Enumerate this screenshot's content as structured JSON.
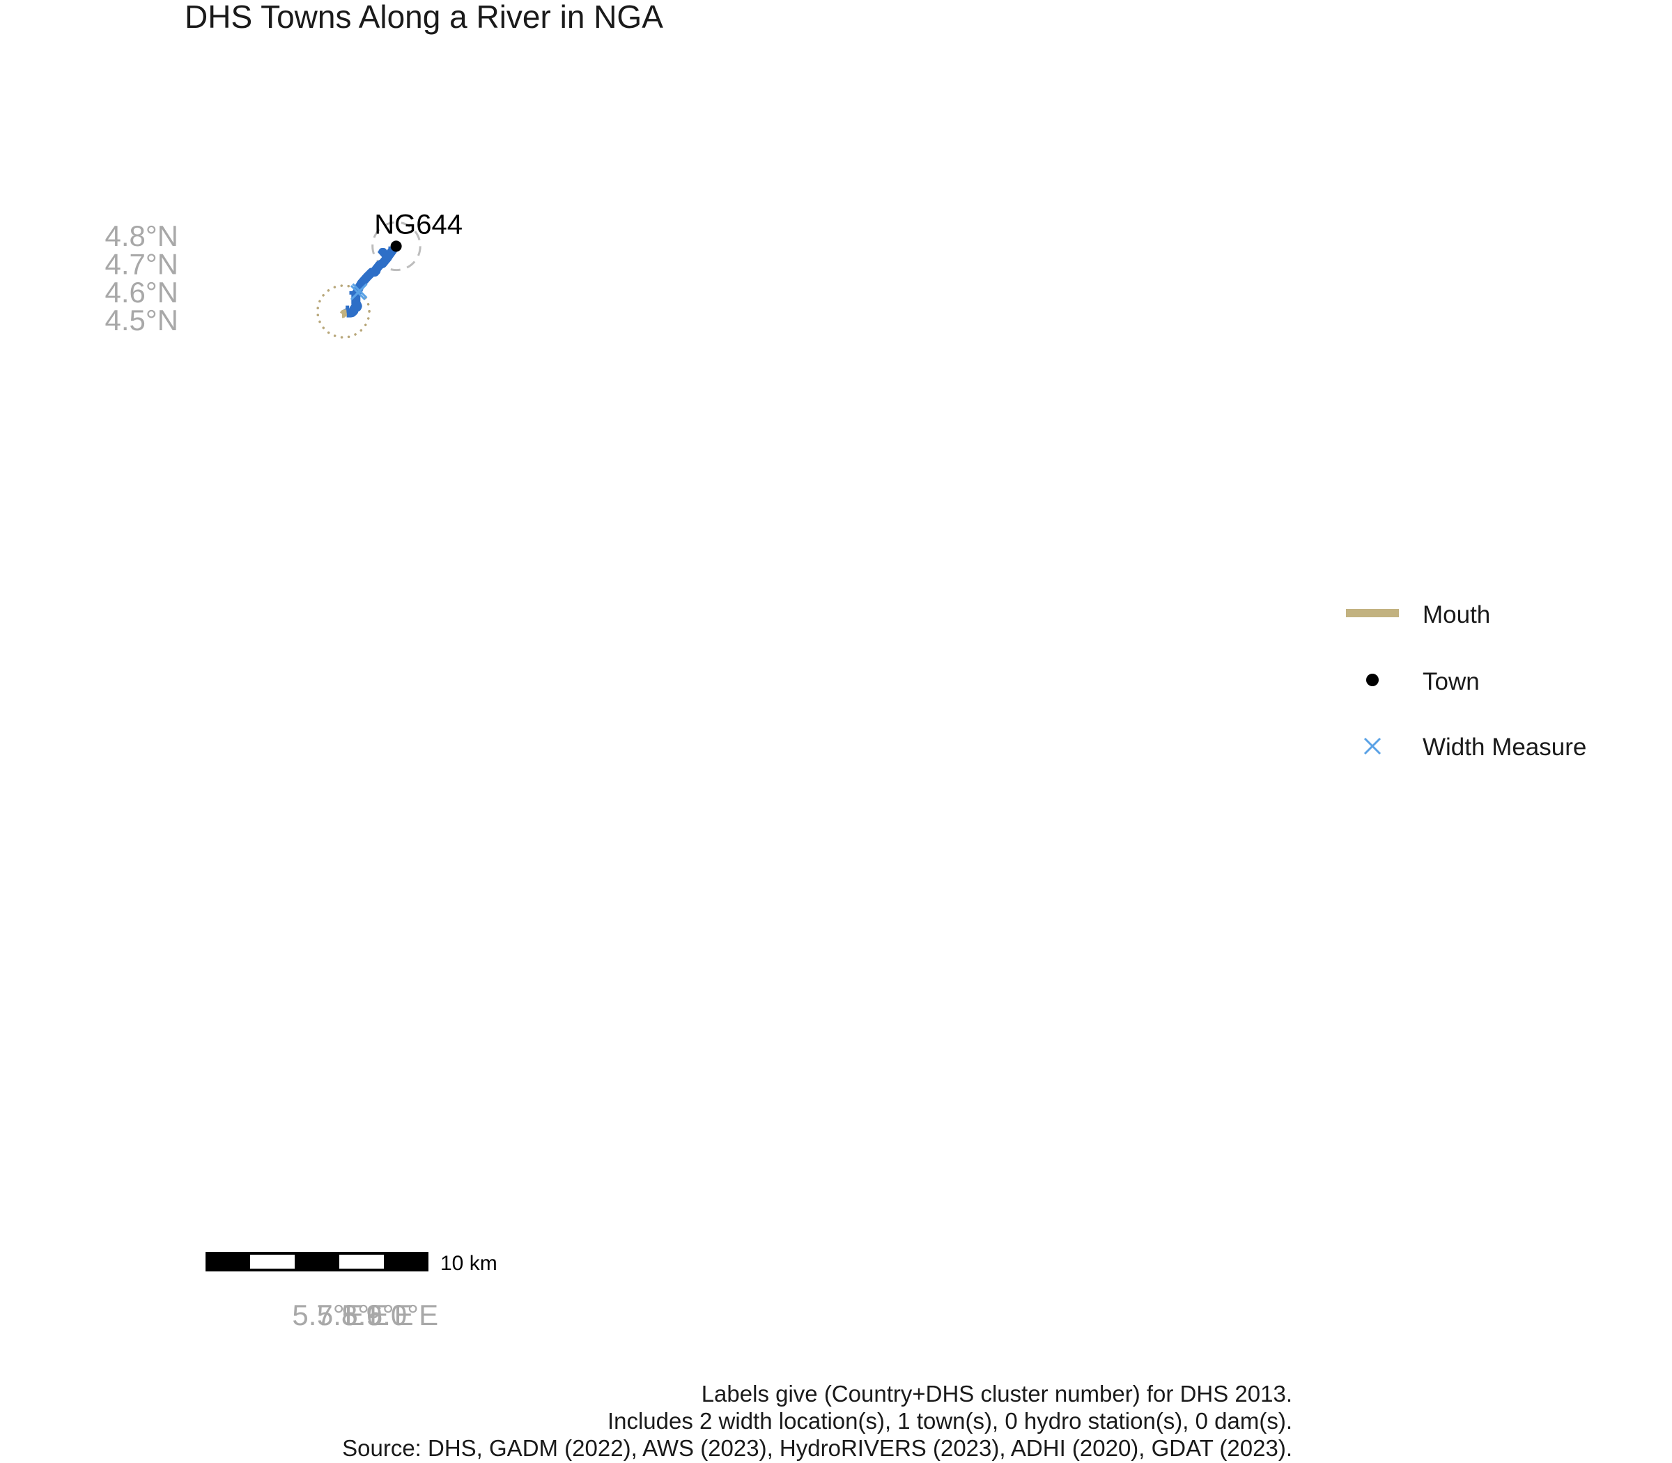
{
  "title": "DHS Towns Along a River in NGA",
  "map": {
    "lon_range": [
      5.63,
      6.18
    ],
    "lat_range": [
      4.43,
      4.86
    ],
    "x_ticks": [
      {
        "value": 5.7,
        "label": "5.7°E"
      },
      {
        "value": 5.8,
        "label": "5.8°E"
      },
      {
        "value": 5.9,
        "label": "5.9°E"
      },
      {
        "value": 6.0,
        "label": "6.0°E"
      }
    ],
    "y_ticks": [
      {
        "value": 4.5,
        "label": "4.5°N"
      },
      {
        "value": 4.6,
        "label": "4.6°N"
      },
      {
        "value": 4.7,
        "label": "4.7°N"
      },
      {
        "value": 4.8,
        "label": "4.8°N"
      }
    ],
    "colors": {
      "river": "#2e6fc7",
      "mouth": "#c2b280",
      "town": "#000000",
      "width_measure": "#5aa2e6",
      "buffer_town": "#bdbdbd",
      "buffer_mouth": "#b8a77a"
    },
    "towns": [
      {
        "label": "NG644",
        "lon": 5.975,
        "lat": 4.762
      }
    ],
    "width_measures": [
      {
        "lon": 5.821,
        "lat": 4.597
      },
      {
        "lon": 5.828,
        "lat": 4.603
      }
    ],
    "buffers": [
      {
        "kind": "town",
        "center_lon": 5.976,
        "center_lat": 4.762,
        "radius_deg": 0.0965,
        "style": "dashed"
      },
      {
        "kind": "mouth",
        "center_lon": 5.762,
        "center_lat": 4.53,
        "radius_deg": 0.1045,
        "style": "dotted"
      }
    ],
    "river_main": [
      [
        5.962,
        4.761
      ],
      [
        5.962,
        4.749
      ],
      [
        5.944,
        4.727
      ],
      [
        5.94,
        4.721
      ],
      [
        5.934,
        4.715
      ],
      [
        5.92,
        4.7
      ],
      [
        5.916,
        4.699
      ],
      [
        5.908,
        4.695
      ],
      [
        5.898,
        4.684
      ],
      [
        5.894,
        4.68
      ],
      [
        5.894,
        4.675
      ],
      [
        5.889,
        4.67
      ],
      [
        5.881,
        4.67
      ],
      [
        5.876,
        4.669
      ],
      [
        5.874,
        4.667
      ],
      [
        5.86,
        4.655
      ],
      [
        5.855,
        4.65
      ],
      [
        5.835,
        4.63
      ],
      [
        5.825,
        4.615
      ],
      [
        5.82,
        4.603
      ],
      [
        5.812,
        4.592
      ],
      [
        5.812,
        4.57
      ],
      [
        5.812,
        4.558
      ],
      [
        5.816,
        4.555
      ],
      [
        5.819,
        4.549
      ],
      [
        5.817,
        4.545
      ],
      [
        5.812,
        4.543
      ],
      [
        5.808,
        4.543
      ],
      [
        5.804,
        4.538
      ],
      [
        5.804,
        4.532
      ],
      [
        5.797,
        4.526
      ],
      [
        5.792,
        4.525
      ],
      [
        5.775,
        4.525
      ]
    ],
    "river_upper_branch": [
      [
        5.94,
        4.721
      ],
      [
        5.926,
        4.739
      ],
      [
        5.924,
        4.743
      ],
      [
        5.918,
        4.743
      ],
      [
        5.914,
        4.736
      ],
      [
        5.909,
        4.732
      ]
    ],
    "river_tributaries": [
      [
        [
          5.962,
          4.748
        ],
        [
          5.945,
          4.727
        ],
        [
          5.945,
          4.722
        ]
      ],
      [
        [
          5.945,
          4.727
        ],
        [
          5.941,
          4.732
        ],
        [
          5.939,
          4.74
        ]
      ],
      [
        [
          5.905,
          4.698
        ],
        [
          5.905,
          4.694
        ],
        [
          5.899,
          4.699
        ]
      ],
      [
        [
          5.913,
          4.7
        ],
        [
          5.918,
          4.71
        ]
      ],
      [
        [
          5.82,
          4.603
        ],
        [
          5.826,
          4.607
        ],
        [
          5.83,
          4.611
        ]
      ],
      [
        [
          5.81,
          4.59
        ],
        [
          5.803,
          4.596
        ],
        [
          5.786,
          4.596
        ]
      ],
      [
        [
          5.806,
          4.594
        ],
        [
          5.806,
          4.6
        ]
      ],
      [
        [
          5.812,
          4.578
        ],
        [
          5.806,
          4.583
        ],
        [
          5.797,
          4.583
        ]
      ],
      [
        [
          5.812,
          4.568
        ],
        [
          5.826,
          4.568
        ]
      ],
      [
        [
          5.812,
          4.568
        ],
        [
          5.812,
          4.561
        ]
      ],
      [
        [
          5.775,
          4.525
        ],
        [
          5.77,
          4.531
        ],
        [
          5.77,
          4.538
        ]
      ],
      [
        [
          5.774,
          4.533
        ],
        [
          5.778,
          4.542
        ],
        [
          5.778,
          4.551
        ]
      ],
      [
        [
          5.787,
          4.525
        ],
        [
          5.787,
          4.518
        ]
      ]
    ],
    "mouth_segment": [
      [
        5.775,
        4.525
      ],
      [
        5.763,
        4.524
      ],
      [
        5.759,
        4.519
      ],
      [
        5.756,
        4.519
      ]
    ],
    "scale_bar": {
      "label": "10 km",
      "segments": 5
    }
  },
  "legend": {
    "items": [
      {
        "key": "mouth",
        "label": "Mouth",
        "symbol": "line"
      },
      {
        "key": "town",
        "label": "Town",
        "symbol": "dot"
      },
      {
        "key": "width",
        "label": "Width Measure",
        "symbol": "cross"
      }
    ]
  },
  "caption": {
    "line1": "Labels give (Country+DHS cluster number) for DHS 2013.",
    "line2": "Includes 2 width location(s), 1 town(s), 0 hydro station(s), 0 dam(s).",
    "line3": "Source: DHS, GADM (2022), AWS (2023), HydroRIVERS (2023), ADHI (2020), GDAT (2023)."
  }
}
